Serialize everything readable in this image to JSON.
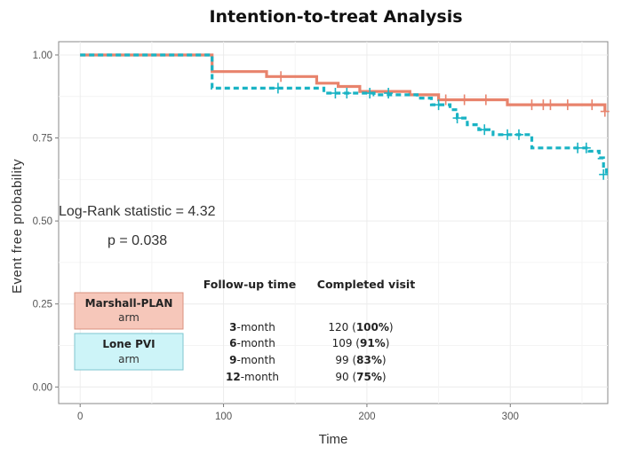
{
  "chart_data": {
    "type": "line",
    "title": "Intention-to-treat Analysis",
    "xlabel": "Time",
    "ylabel": "Event free probability",
    "xlim": [
      -15,
      368
    ],
    "ylim": [
      -0.05,
      1.04
    ],
    "xticks": [
      0,
      100,
      200,
      300
    ],
    "yticks": [
      0.0,
      0.25,
      0.5,
      0.75,
      1.0
    ],
    "ytick_labels": [
      "0.00",
      "0.25",
      "0.50",
      "0.75",
      "1.00"
    ],
    "grid": true,
    "series": [
      {
        "name": "Marshall-PLAN",
        "color": "#e8836c",
        "style": "solid",
        "steps": [
          [
            0,
            1.0
          ],
          [
            92,
            1.0
          ],
          [
            92,
            0.95
          ],
          [
            130,
            0.95
          ],
          [
            130,
            0.935
          ],
          [
            165,
            0.935
          ],
          [
            165,
            0.915
          ],
          [
            180,
            0.915
          ],
          [
            180,
            0.905
          ],
          [
            195,
            0.905
          ],
          [
            195,
            0.89
          ],
          [
            230,
            0.89
          ],
          [
            230,
            0.88
          ],
          [
            250,
            0.88
          ],
          [
            250,
            0.865
          ],
          [
            298,
            0.865
          ],
          [
            298,
            0.85
          ],
          [
            366,
            0.85
          ],
          [
            366,
            0.83
          ]
        ],
        "censor": [
          [
            140,
            0.935
          ],
          [
            255,
            0.865
          ],
          [
            268,
            0.865
          ],
          [
            283,
            0.865
          ],
          [
            315,
            0.85
          ],
          [
            323,
            0.85
          ],
          [
            328,
            0.85
          ],
          [
            340,
            0.85
          ],
          [
            357,
            0.85
          ],
          [
            366,
            0.83
          ]
        ]
      },
      {
        "name": "Lone PVI",
        "color": "#19b3c4",
        "style": "dashed",
        "steps": [
          [
            0,
            1.0
          ],
          [
            92,
            1.0
          ],
          [
            92,
            0.9
          ],
          [
            170,
            0.9
          ],
          [
            170,
            0.885
          ],
          [
            205,
            0.885
          ],
          [
            205,
            0.88
          ],
          [
            235,
            0.88
          ],
          [
            235,
            0.87
          ],
          [
            245,
            0.87
          ],
          [
            245,
            0.85
          ],
          [
            258,
            0.85
          ],
          [
            258,
            0.835
          ],
          [
            263,
            0.835
          ],
          [
            263,
            0.81
          ],
          [
            270,
            0.81
          ],
          [
            270,
            0.79
          ],
          [
            278,
            0.79
          ],
          [
            278,
            0.775
          ],
          [
            288,
            0.775
          ],
          [
            288,
            0.76
          ],
          [
            315,
            0.76
          ],
          [
            315,
            0.72
          ],
          [
            355,
            0.72
          ],
          [
            355,
            0.71
          ],
          [
            362,
            0.71
          ],
          [
            362,
            0.69
          ],
          [
            365,
            0.69
          ],
          [
            365,
            0.66
          ],
          [
            367,
            0.66
          ],
          [
            367,
            0.64
          ]
        ],
        "censor": [
          [
            138,
            0.9
          ],
          [
            178,
            0.885
          ],
          [
            186,
            0.885
          ],
          [
            202,
            0.885
          ],
          [
            215,
            0.885
          ],
          [
            250,
            0.85
          ],
          [
            263,
            0.81
          ],
          [
            282,
            0.775
          ],
          [
            298,
            0.76
          ],
          [
            306,
            0.76
          ],
          [
            347,
            0.72
          ],
          [
            353,
            0.72
          ],
          [
            365,
            0.64
          ]
        ]
      }
    ],
    "annotations": {
      "log_rank": "Log-Rank statistic = 4.32",
      "p_value": "p = 0.038"
    },
    "legend": [
      {
        "name": "Marshall-PLAN",
        "sub": "arm",
        "fill": "#f6c7ba",
        "stroke": "#d9907e"
      },
      {
        "name": "Lone PVI",
        "sub": "arm",
        "fill": "#cdf4f8",
        "stroke": "#7fc6cf"
      }
    ],
    "followup_table": {
      "headers": [
        "Follow-up time",
        "Completed visit"
      ],
      "rows": [
        {
          "month_num": "3",
          "month_unit": "-month",
          "count": "120",
          "pct": "100%"
        },
        {
          "month_num": "6",
          "month_unit": "-month",
          "count": "109",
          "pct": "91%"
        },
        {
          "month_num": "9",
          "month_unit": "-month",
          "count": "99",
          "pct": "83%"
        },
        {
          "month_num": "12",
          "month_unit": "-month",
          "count": "90",
          "pct": "75%"
        }
      ]
    }
  }
}
